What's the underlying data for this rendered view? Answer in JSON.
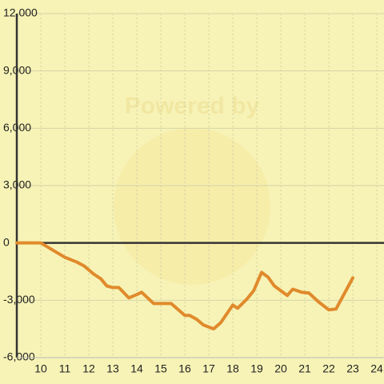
{
  "chart_data": {
    "type": "line",
    "watermark": "Powered by",
    "x": [
      9,
      10,
      11,
      11.5,
      11.8,
      12.2,
      12.5,
      12.75,
      13,
      13.25,
      13.67,
      14,
      14.2,
      14.7,
      15.43,
      16,
      16.2,
      16.5,
      16.77,
      17.2,
      17.5,
      18,
      18.2,
      18.6,
      18.87,
      19.2,
      19.47,
      19.73,
      20,
      20.27,
      20.5,
      20.87,
      21.17,
      21.57,
      22,
      22.3,
      23
    ],
    "series": [
      {
        "color": "#e08a2c",
        "values": [
          0,
          0,
          -750,
          -1000,
          -1200,
          -1625,
          -1875,
          -2250,
          -2333,
          -2333,
          -2875,
          -2700,
          -2580,
          -3167,
          -3167,
          -3790,
          -3790,
          -4000,
          -4290,
          -4500,
          -4170,
          -3250,
          -3420,
          -2920,
          -2500,
          -1540,
          -1790,
          -2250,
          -2500,
          -2750,
          -2420,
          -2580,
          -2620,
          -3080,
          -3500,
          -3460,
          -1830
        ]
      }
    ],
    "xlim": [
      9,
      24.3
    ],
    "ylim": [
      -6000,
      12000
    ],
    "xticks": [
      10,
      11,
      12,
      13,
      14,
      15,
      16,
      17,
      18,
      19,
      20,
      21,
      22,
      23,
      24
    ],
    "yticks": [
      {
        "value": -6000,
        "label": "-6,000"
      },
      {
        "value": -3000,
        "label": "-3,000"
      },
      0,
      {
        "value": 3000,
        "label": "3,000"
      },
      {
        "value": 6000,
        "label": "6,000"
      },
      {
        "value": 9000,
        "label": "9,000"
      },
      {
        "value": 12000,
        "label": "12,000"
      }
    ],
    "grid": true
  }
}
